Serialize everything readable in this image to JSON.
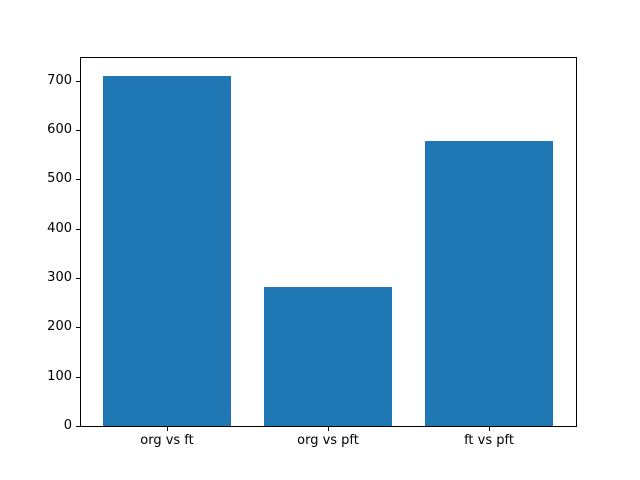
{
  "figure": {
    "background": "#ffffff",
    "plot_background": "#ffffff",
    "spine_color": "#000000",
    "text_color": "#000000"
  },
  "chart_data": {
    "type": "bar",
    "categories": [
      "org vs ft",
      "org vs pft",
      "ft vs pft"
    ],
    "values": [
      712,
      282,
      579
    ],
    "title": "",
    "xlabel": "",
    "ylabel": "",
    "ylim": [
      0,
      748
    ],
    "yticks": [
      0,
      100,
      200,
      300,
      400,
      500,
      600,
      700
    ],
    "bar_color": "#1f77b4",
    "bar_width_fraction": 0.8,
    "grid": false,
    "legend_position": "none"
  }
}
